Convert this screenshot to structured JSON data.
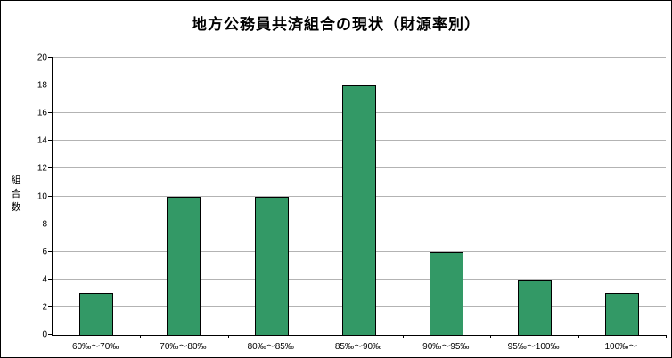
{
  "chart_data": {
    "type": "bar",
    "title": "地方公務員共済組合の現状（財源率別）",
    "ylabel": "組合数",
    "xlabel": "",
    "categories": [
      "60‰～70‰",
      "70‰～80‰",
      "80‰～85‰",
      "85‰～90‰",
      "90‰～95‰",
      "95‰～100‰",
      "100‰～"
    ],
    "values": [
      3,
      10,
      10,
      18,
      6,
      4,
      3
    ],
    "ylim": [
      0,
      20
    ],
    "ytick_step": 2,
    "grid": true,
    "legend": "none",
    "bar_color": "#339966",
    "bar_border_color": "#000000",
    "gridline_color": "#b3b3b3",
    "axis_color": "#000000",
    "background_color": "#ffffff"
  }
}
